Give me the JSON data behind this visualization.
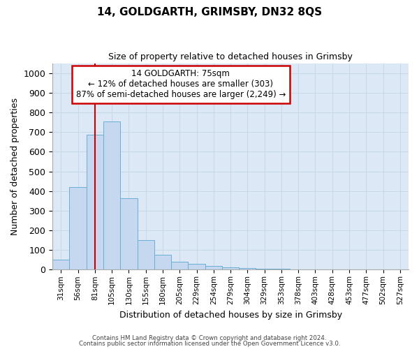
{
  "title": "14, GOLDGARTH, GRIMSBY, DN32 8QS",
  "subtitle": "Size of property relative to detached houses in Grimsby",
  "xlabel": "Distribution of detached houses by size in Grimsby",
  "ylabel": "Number of detached properties",
  "footer_line1": "Contains HM Land Registry data © Crown copyright and database right 2024.",
  "footer_line2": "Contains public sector information licensed under the Open Government Licence v3.0.",
  "bar_labels": [
    "31sqm",
    "56sqm",
    "81sqm",
    "105sqm",
    "130sqm",
    "155sqm",
    "180sqm",
    "205sqm",
    "229sqm",
    "254sqm",
    "279sqm",
    "304sqm",
    "329sqm",
    "353sqm",
    "378sqm",
    "403sqm",
    "428sqm",
    "453sqm",
    "477sqm",
    "502sqm",
    "527sqm"
  ],
  "bar_values": [
    50,
    420,
    685,
    755,
    365,
    150,
    75,
    40,
    30,
    18,
    12,
    8,
    5,
    4,
    3,
    2,
    2,
    1,
    1,
    1,
    1
  ],
  "bar_color": "#c5d8f0",
  "bar_edge_color": "#6baed6",
  "ylim": [
    0,
    1050
  ],
  "yticks": [
    0,
    100,
    200,
    300,
    400,
    500,
    600,
    700,
    800,
    900,
    1000
  ],
  "annotation_text_line1": "14 GOLDGARTH: 75sqm",
  "annotation_text_line2": "← 12% of detached houses are smaller (303)",
  "annotation_text_line3": "87% of semi-detached houses are larger (2,249) →",
  "annotation_box_color": "#ffffff",
  "annotation_box_edge_color": "#cc0000",
  "vline_color": "#cc0000",
  "grid_color": "#c8d8e8",
  "background_color": "#dce8f5"
}
